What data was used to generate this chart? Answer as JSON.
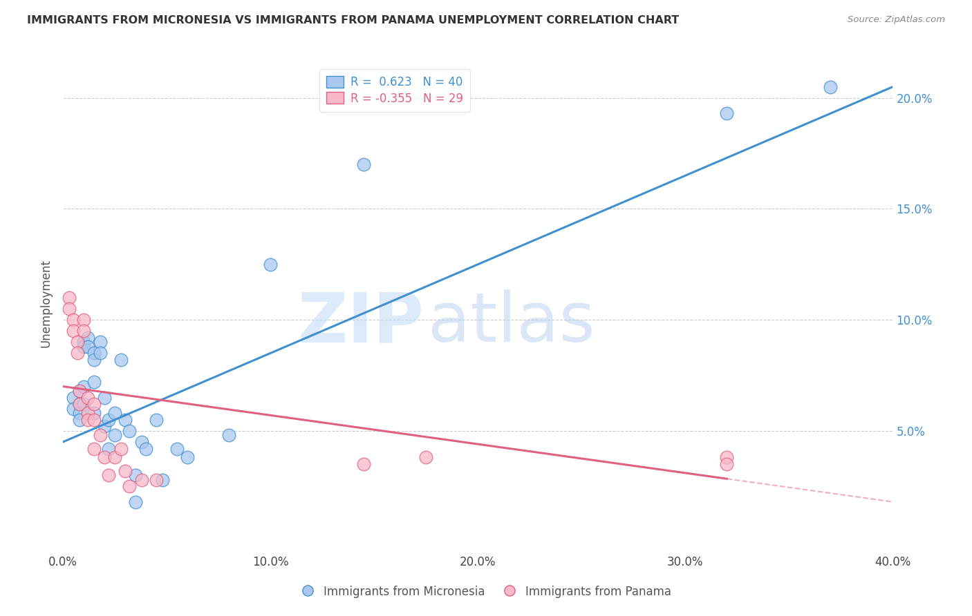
{
  "title": "IMMIGRANTS FROM MICRONESIA VS IMMIGRANTS FROM PANAMA UNEMPLOYMENT CORRELATION CHART",
  "source": "Source: ZipAtlas.com",
  "xlabel": "",
  "ylabel": "Unemployment",
  "xlim": [
    0.0,
    0.4
  ],
  "ylim": [
    -0.005,
    0.22
  ],
  "yticks": [
    0.05,
    0.1,
    0.15,
    0.2
  ],
  "ytick_labels": [
    "5.0%",
    "10.0%",
    "15.0%",
    "20.0%"
  ],
  "xticks": [
    0.0,
    0.1,
    0.2,
    0.3,
    0.4
  ],
  "xtick_labels": [
    "0.0%",
    "10.0%",
    "20.0%",
    "30.0%",
    "40.0%"
  ],
  "blue_r": 0.623,
  "blue_n": 40,
  "pink_r": -0.355,
  "pink_n": 29,
  "blue_color": "#A8C8F0",
  "pink_color": "#F8B8C8",
  "blue_line_color": "#4090D0",
  "pink_line_color": "#E06080",
  "blue_line_x0": 0.0,
  "blue_line_y0": 0.045,
  "blue_line_x1": 0.4,
  "blue_line_y1": 0.205,
  "pink_line_x0": 0.0,
  "pink_line_y0": 0.07,
  "pink_line_x1_solid": 0.32,
  "pink_line_y1_solid": 0.03,
  "pink_line_x1_dash": 0.4,
  "pink_line_y1_dash": 0.018,
  "blue_scatter": [
    [
      0.005,
      0.065
    ],
    [
      0.005,
      0.06
    ],
    [
      0.008,
      0.068
    ],
    [
      0.008,
      0.062
    ],
    [
      0.008,
      0.058
    ],
    [
      0.008,
      0.055
    ],
    [
      0.01,
      0.09
    ],
    [
      0.01,
      0.088
    ],
    [
      0.01,
      0.07
    ],
    [
      0.01,
      0.062
    ],
    [
      0.012,
      0.092
    ],
    [
      0.012,
      0.088
    ],
    [
      0.015,
      0.085
    ],
    [
      0.015,
      0.082
    ],
    [
      0.015,
      0.072
    ],
    [
      0.015,
      0.058
    ],
    [
      0.018,
      0.09
    ],
    [
      0.018,
      0.085
    ],
    [
      0.02,
      0.065
    ],
    [
      0.02,
      0.052
    ],
    [
      0.022,
      0.055
    ],
    [
      0.022,
      0.042
    ],
    [
      0.025,
      0.058
    ],
    [
      0.025,
      0.048
    ],
    [
      0.028,
      0.082
    ],
    [
      0.03,
      0.055
    ],
    [
      0.032,
      0.05
    ],
    [
      0.035,
      0.03
    ],
    [
      0.035,
      0.018
    ],
    [
      0.038,
      0.045
    ],
    [
      0.04,
      0.042
    ],
    [
      0.045,
      0.055
    ],
    [
      0.048,
      0.028
    ],
    [
      0.055,
      0.042
    ],
    [
      0.06,
      0.038
    ],
    [
      0.08,
      0.048
    ],
    [
      0.1,
      0.125
    ],
    [
      0.145,
      0.17
    ],
    [
      0.32,
      0.193
    ],
    [
      0.37,
      0.205
    ]
  ],
  "pink_scatter": [
    [
      0.003,
      0.11
    ],
    [
      0.003,
      0.105
    ],
    [
      0.005,
      0.1
    ],
    [
      0.005,
      0.095
    ],
    [
      0.007,
      0.09
    ],
    [
      0.007,
      0.085
    ],
    [
      0.008,
      0.068
    ],
    [
      0.008,
      0.062
    ],
    [
      0.01,
      0.1
    ],
    [
      0.01,
      0.095
    ],
    [
      0.012,
      0.065
    ],
    [
      0.012,
      0.058
    ],
    [
      0.012,
      0.055
    ],
    [
      0.015,
      0.062
    ],
    [
      0.015,
      0.055
    ],
    [
      0.015,
      0.042
    ],
    [
      0.018,
      0.048
    ],
    [
      0.02,
      0.038
    ],
    [
      0.022,
      0.03
    ],
    [
      0.025,
      0.038
    ],
    [
      0.028,
      0.042
    ],
    [
      0.03,
      0.032
    ],
    [
      0.032,
      0.025
    ],
    [
      0.038,
      0.028
    ],
    [
      0.045,
      0.028
    ],
    [
      0.145,
      0.035
    ],
    [
      0.175,
      0.038
    ],
    [
      0.32,
      0.038
    ],
    [
      0.32,
      0.035
    ]
  ],
  "watermark_zip": "ZIP",
  "watermark_atlas": "atlas",
  "background_color": "#FFFFFF",
  "grid_color": "#CCCCCC"
}
